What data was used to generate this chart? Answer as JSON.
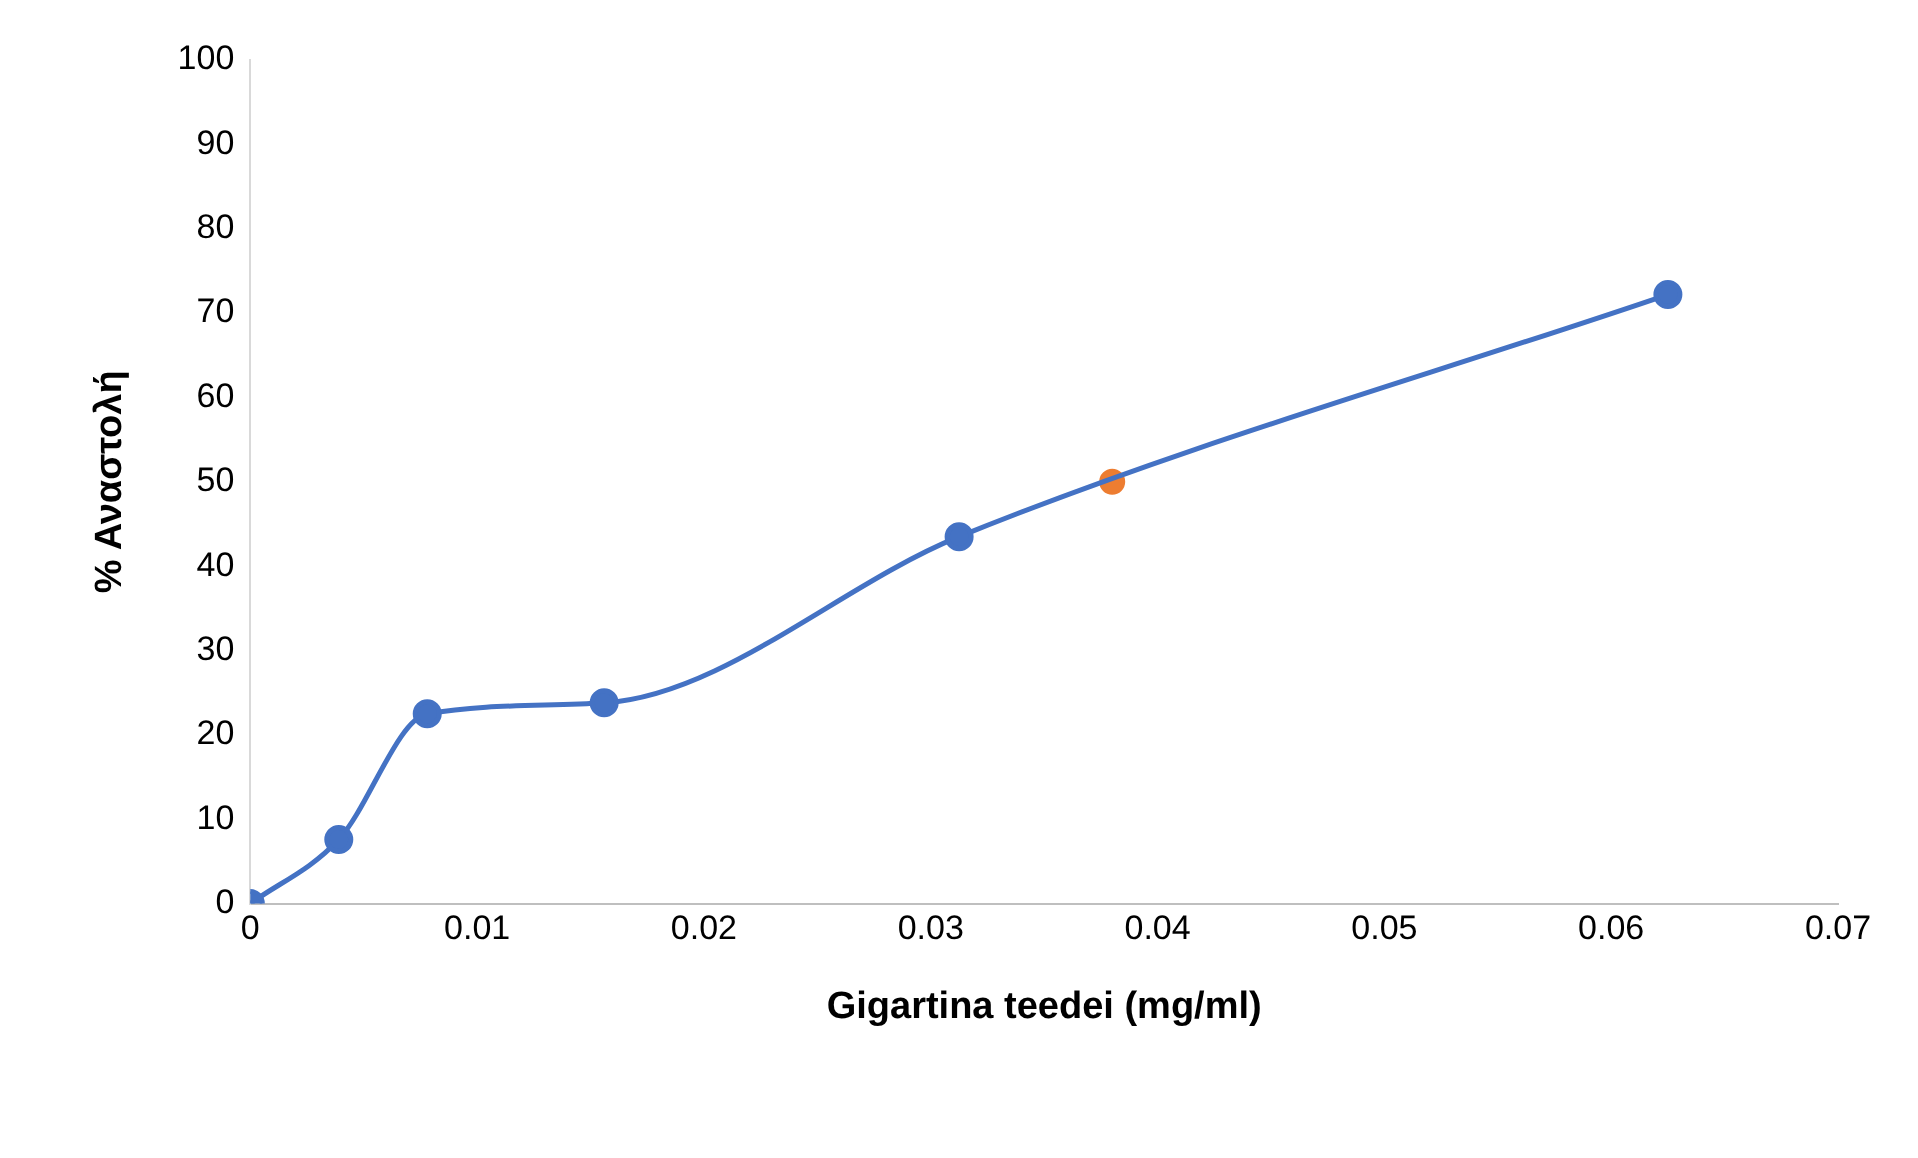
{
  "chart_data": {
    "type": "line",
    "xlabel": "Gigartina teedei (mg/ml)",
    "ylabel": "% Αναστολή",
    "xlim": [
      0,
      0.07
    ],
    "xticks": [
      0,
      0.01,
      0.02,
      0.03,
      0.04,
      0.05,
      0.06,
      0.07
    ],
    "ylim": [
      0,
      100
    ],
    "yticks": [
      0,
      10,
      20,
      30,
      40,
      50,
      60,
      70,
      80,
      90,
      100
    ],
    "grid": false,
    "legend": false,
    "marker": "circle",
    "line_style": "solid",
    "series": [
      {
        "type": "line",
        "color": "#4472c4",
        "x": [
          0,
          0.0039,
          0.0078,
          0.0156,
          0.03125,
          0.0625
        ],
        "values": [
          0,
          7.6,
          22.5,
          23.8,
          43.5,
          72.2
        ]
      },
      {
        "type": "scatter",
        "color": "#ed7d31",
        "x": [
          0.038
        ],
        "values": [
          50
        ]
      }
    ]
  }
}
